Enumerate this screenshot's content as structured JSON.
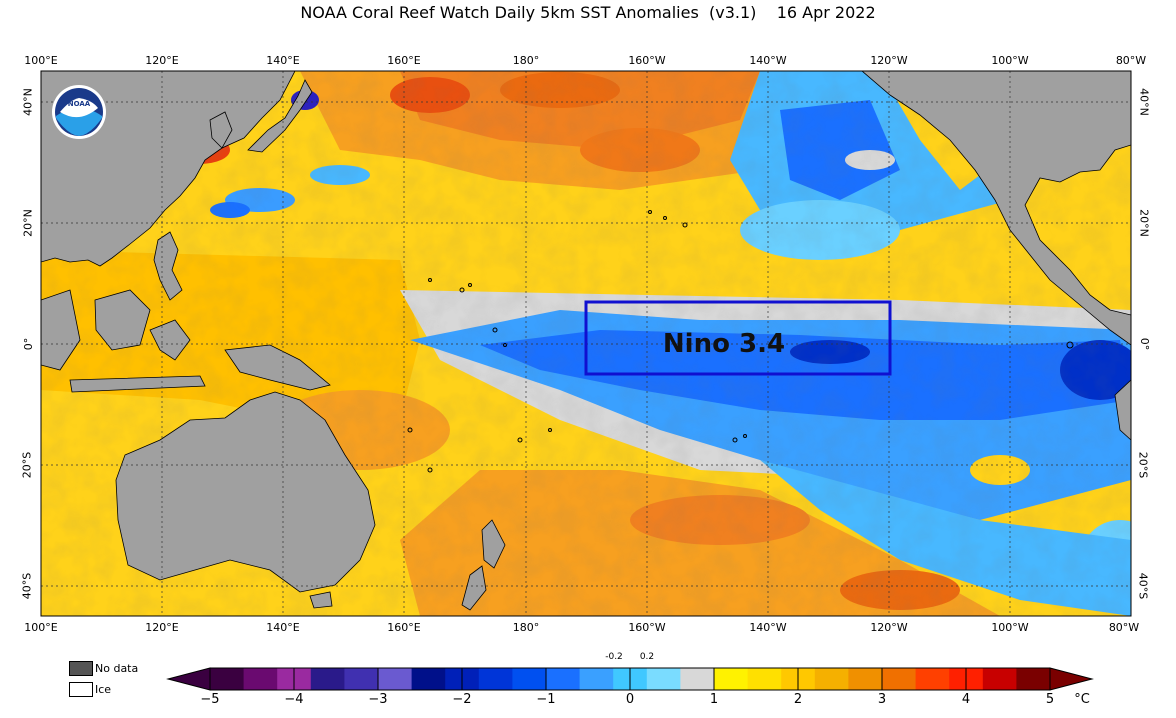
{
  "title": "NOAA Coral Reef Watch Daily 5km SST Anomalies  (v3.1)    16 Apr 2022",
  "logo_text": "NOAA",
  "annotation": "Nino 3.4",
  "lon_labels": [
    "100°E",
    "120°E",
    "140°E",
    "160°E",
    "180°",
    "160°W",
    "140°W",
    "120°W",
    "100°W",
    "80°W"
  ],
  "lat_labels_left": [
    "40°N",
    "20°N",
    "0°",
    "20°S",
    "40°S"
  ],
  "lat_labels_right": [
    "40°N",
    "20°N",
    "0°",
    "20°S",
    "40°S"
  ],
  "legend": {
    "no_data": "No data",
    "ice": "Ice",
    "no_data_color": "#555555",
    "ice_color": "#ffffff"
  },
  "colorbar": {
    "ticks": [
      "−5",
      "−4",
      "−3",
      "−2",
      "−1",
      "0",
      "1",
      "2",
      "3",
      "4",
      "5"
    ],
    "small_ticks": [
      "-0.2",
      "0.2"
    ],
    "unit": "°C",
    "colors": [
      "#3a0040",
      "#6a0a70",
      "#9a2aa0",
      "#2a1a8a",
      "#4030b0",
      "#6a5ad0",
      "#00108a",
      "#0020b8",
      "#0035d8",
      "#0050f0",
      "#1a70ff",
      "#3aa0ff",
      "#40c8ff",
      "#7adcff",
      "#d8d8d8",
      "#fff200",
      "#ffe000",
      "#ffc800",
      "#f5b000",
      "#f09000",
      "#f07000",
      "#ff4000",
      "#ff2000",
      "#c80000",
      "#7a0000"
    ]
  },
  "colors": {
    "land": "#a0a0a0",
    "neutral": "#d8d8d8",
    "annotation_box": "#1010d0"
  }
}
